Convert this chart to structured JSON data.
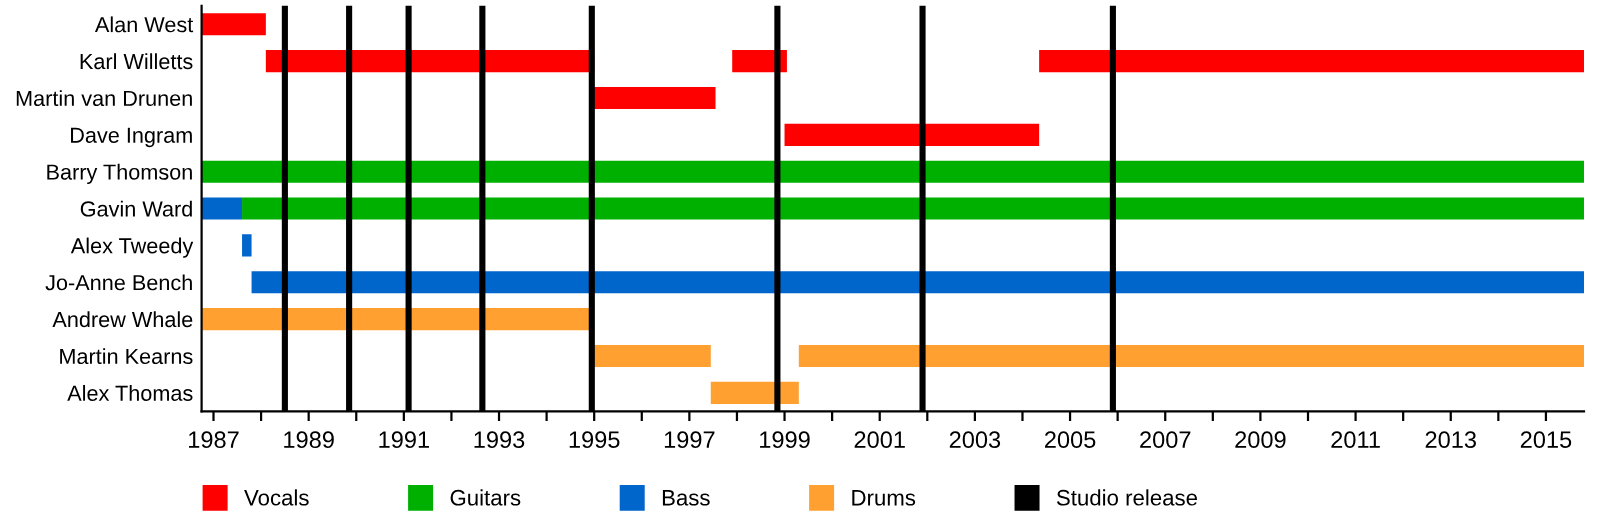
{
  "chart_data": {
    "type": "bar",
    "orientation": "horizontal",
    "categories": [
      "Alan West",
      "Karl Willetts",
      "Martin van Drunen",
      "Dave Ingram",
      "Barry Thomson",
      "Gavin Ward",
      "Alex Tweedy",
      "Jo-Anne Bench",
      "Andrew Whale",
      "Martin Kearns",
      "Alex Thomas"
    ],
    "series": [
      {
        "name": "Vocals",
        "color": "#ff0000",
        "base": [
          1986.75,
          1988.1,
          1995.0,
          1999.0,
          null,
          null,
          null,
          null,
          null,
          null,
          null
        ],
        "values": [
          1.35,
          6.9,
          2.55,
          5.35,
          null,
          null,
          null,
          null,
          null,
          null,
          null
        ]
      },
      {
        "color": "#ff0000",
        "base": [
          null,
          1997.9,
          null,
          null,
          null,
          null,
          null,
          null,
          null,
          null,
          null
        ],
        "values": [
          null,
          1.15,
          null,
          null,
          null,
          null,
          null,
          null,
          null,
          null,
          null
        ]
      },
      {
        "color": "#ff0000",
        "base": [
          null,
          2004.35,
          null,
          null,
          null,
          null,
          null,
          null,
          null,
          null,
          null
        ],
        "values": [
          null,
          11.45,
          null,
          null,
          null,
          null,
          null,
          null,
          null,
          null,
          null
        ]
      },
      {
        "name": "Guitars",
        "color": "#00b000",
        "base": [
          null,
          null,
          null,
          null,
          1986.75,
          1987.6,
          null,
          null,
          null,
          null,
          null
        ],
        "values": [
          null,
          null,
          null,
          null,
          29.05,
          28.2,
          null,
          null,
          null,
          null,
          null
        ]
      },
      {
        "name": "Bass",
        "color": "#0066cc",
        "base": [
          null,
          null,
          null,
          null,
          null,
          1986.75,
          1987.6,
          1987.8,
          null,
          null,
          null
        ],
        "values": [
          null,
          null,
          null,
          null,
          null,
          0.85,
          0.2,
          28.0,
          null,
          null,
          null
        ]
      },
      {
        "name": "Drums",
        "color": "#ffa030",
        "base": [
          null,
          null,
          null,
          null,
          null,
          null,
          null,
          null,
          1986.75,
          1994.95,
          1997.45
        ],
        "values": [
          null,
          null,
          null,
          null,
          null,
          null,
          null,
          null,
          8.25,
          2.5,
          1.85
        ]
      },
      {
        "color": "#ffa030",
        "base": [
          null,
          null,
          null,
          null,
          null,
          null,
          null,
          null,
          null,
          1999.3,
          null
        ],
        "values": [
          null,
          null,
          null,
          null,
          null,
          null,
          null,
          null,
          null,
          16.5,
          null
        ]
      }
    ],
    "ref_lines": [
      {
        "axis": "x",
        "value": 1988.5,
        "label": "Studio release",
        "color": "#000000"
      },
      {
        "axis": "x",
        "value": 1989.85,
        "color": "#000000"
      },
      {
        "axis": "x",
        "value": 1991.1,
        "color": "#000000"
      },
      {
        "axis": "x",
        "value": 1992.65,
        "color": "#000000"
      },
      {
        "axis": "x",
        "value": 1994.95,
        "color": "#000000"
      },
      {
        "axis": "x",
        "value": 1998.85,
        "color": "#000000"
      },
      {
        "axis": "x",
        "value": 2001.9,
        "color": "#000000"
      },
      {
        "axis": "x",
        "value": 2005.9,
        "color": "#000000"
      }
    ],
    "xlim": [
      1986.75,
      2015.8
    ],
    "xticks": [
      1987,
      {
        "value": 1988,
        "label": null
      },
      1989,
      {
        "value": 1990,
        "label": null
      },
      1991,
      {
        "value": 1992,
        "label": null
      },
      1993,
      {
        "value": 1994,
        "label": null
      },
      1995,
      {
        "value": 1996,
        "label": null
      },
      1997,
      {
        "value": 1998,
        "label": null
      },
      1999,
      {
        "value": 2000,
        "label": null
      },
      2001,
      {
        "value": 2002,
        "label": null
      },
      2003,
      {
        "value": 2004,
        "label": null
      },
      2005,
      {
        "value": 2006,
        "label": null
      },
      2007,
      {
        "value": 2008,
        "label": null
      },
      2009,
      {
        "value": 2010,
        "label": null
      },
      2011,
      {
        "value": 2012,
        "label": null
      },
      2013,
      {
        "value": 2014,
        "label": null
      },
      2015
    ],
    "legend": "bottom",
    "grid": false
  }
}
